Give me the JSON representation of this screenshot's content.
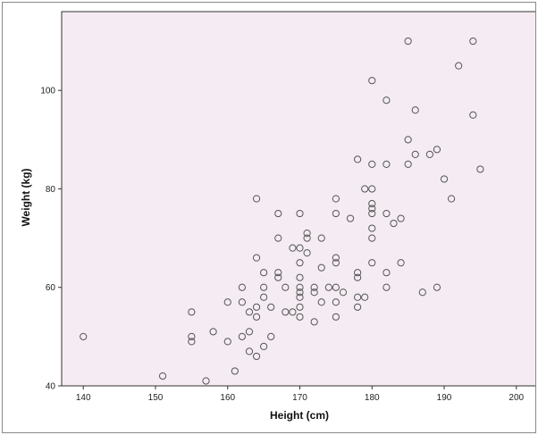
{
  "chart_data": {
    "type": "scatter",
    "title": "",
    "xlabel": "Height (cm)",
    "ylabel": "Weight (kg)",
    "xlim": [
      137,
      203
    ],
    "ylim": [
      40,
      116
    ],
    "xticks": [
      140,
      150,
      160,
      170,
      180,
      190,
      200
    ],
    "yticks": [
      40,
      60,
      80,
      100
    ],
    "grid": false,
    "colors": {
      "plot_background": "#f4ecf2",
      "marker_stroke": "#555555",
      "axis": "#333333"
    },
    "points": [
      [
        140,
        50
      ],
      [
        151,
        42
      ],
      [
        155,
        55
      ],
      [
        155,
        50
      ],
      [
        155,
        49
      ],
      [
        157,
        41
      ],
      [
        158,
        51
      ],
      [
        160,
        57
      ],
      [
        160,
        49
      ],
      [
        161,
        43
      ],
      [
        162,
        60
      ],
      [
        162,
        50
      ],
      [
        162,
        57
      ],
      [
        163,
        55
      ],
      [
        163,
        51
      ],
      [
        163,
        47
      ],
      [
        164,
        78
      ],
      [
        164,
        66
      ],
      [
        164,
        56
      ],
      [
        164,
        54
      ],
      [
        164,
        46
      ],
      [
        165,
        63
      ],
      [
        165,
        60
      ],
      [
        165,
        58
      ],
      [
        165,
        48
      ],
      [
        166,
        56
      ],
      [
        166,
        50
      ],
      [
        167,
        75
      ],
      [
        167,
        70
      ],
      [
        167,
        63
      ],
      [
        167,
        62
      ],
      [
        168,
        60
      ],
      [
        168,
        55
      ],
      [
        169,
        68
      ],
      [
        169,
        55
      ],
      [
        170,
        75
      ],
      [
        170,
        68
      ],
      [
        170,
        65
      ],
      [
        170,
        62
      ],
      [
        170,
        60
      ],
      [
        170,
        59
      ],
      [
        170,
        58
      ],
      [
        170,
        56
      ],
      [
        170,
        54
      ],
      [
        171,
        71
      ],
      [
        171,
        70
      ],
      [
        171,
        67
      ],
      [
        172,
        60
      ],
      [
        172,
        59
      ],
      [
        172,
        53
      ],
      [
        173,
        70
      ],
      [
        173,
        64
      ],
      [
        173,
        57
      ],
      [
        174,
        60
      ],
      [
        175,
        78
      ],
      [
        175,
        75
      ],
      [
        175,
        66
      ],
      [
        175,
        65
      ],
      [
        175,
        60
      ],
      [
        175,
        57
      ],
      [
        175,
        54
      ],
      [
        176,
        59
      ],
      [
        177,
        74
      ],
      [
        178,
        86
      ],
      [
        178,
        63
      ],
      [
        178,
        62
      ],
      [
        178,
        58
      ],
      [
        178,
        56
      ],
      [
        179,
        80
      ],
      [
        179,
        58
      ],
      [
        180,
        102
      ],
      [
        180,
        85
      ],
      [
        180,
        80
      ],
      [
        180,
        77
      ],
      [
        180,
        76
      ],
      [
        180,
        75
      ],
      [
        180,
        72
      ],
      [
        180,
        70
      ],
      [
        180,
        65
      ],
      [
        182,
        98
      ],
      [
        182,
        85
      ],
      [
        182,
        75
      ],
      [
        182,
        63
      ],
      [
        182,
        60
      ],
      [
        183,
        73
      ],
      [
        184,
        74
      ],
      [
        184,
        65
      ],
      [
        185,
        110
      ],
      [
        185,
        90
      ],
      [
        185,
        85
      ],
      [
        186,
        96
      ],
      [
        186,
        87
      ],
      [
        187,
        59
      ],
      [
        188,
        87
      ],
      [
        189,
        88
      ],
      [
        189,
        60
      ],
      [
        190,
        82
      ],
      [
        191,
        78
      ],
      [
        192,
        105
      ],
      [
        194,
        110
      ],
      [
        194,
        95
      ],
      [
        195,
        84
      ]
    ]
  }
}
